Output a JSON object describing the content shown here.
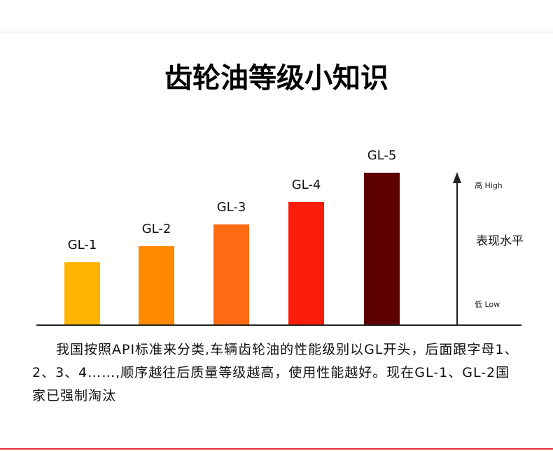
{
  "chart_data": {
    "type": "bar",
    "title": "齿轮油等级小知识",
    "categories": [
      "GL-1",
      "GL-2",
      "GL-3",
      "GL-4",
      "GL-5"
    ],
    "values": [
      89,
      112,
      143,
      175,
      217
    ],
    "colors": [
      "#ffb400",
      "#ff8a00",
      "#ff6a12",
      "#fc1c0a",
      "#5c0000"
    ],
    "axis_label": "表现水平",
    "axis_high": "高 High",
    "axis_low": "低 Low",
    "description": "我国按照API标准来分类,车辆齿轮油的性能级别以GL开头，后面跟字母1、2、3、4……,顺序越往后质量等级越高，使用性能越好。现在GL-1、GL-2国家已强制淘汰"
  }
}
